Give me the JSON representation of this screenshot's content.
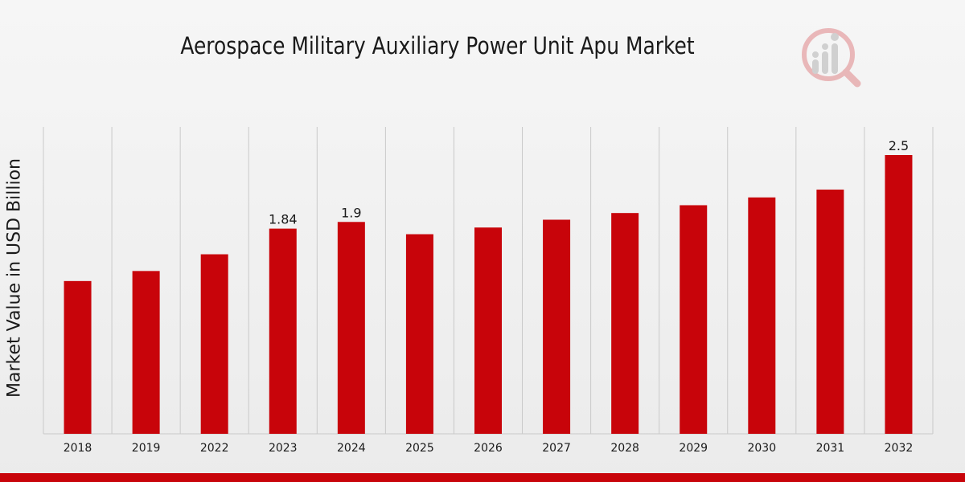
{
  "chart_data": {
    "type": "bar",
    "title": "Aerospace Military Auxiliary Power Unit Apu Market",
    "xlabel": "",
    "ylabel": "Market Value in USD Billion",
    "categories": [
      "2018",
      "2019",
      "2022",
      "2023",
      "2024",
      "2025",
      "2026",
      "2027",
      "2028",
      "2029",
      "2030",
      "2031",
      "2032"
    ],
    "values": [
      1.37,
      1.46,
      1.61,
      1.84,
      1.9,
      1.79,
      1.85,
      1.92,
      1.98,
      2.05,
      2.12,
      2.19,
      2.5
    ],
    "data_labels": {
      "3": "1.84",
      "4": "1.9",
      "12": "2.5"
    },
    "ylim": [
      0,
      2.5
    ],
    "grid": "vertical",
    "bar_color": "#c8040a"
  },
  "colors": {
    "accent": "#c8040a",
    "grid": "#c9c9c9",
    "text": "#1a1a1a"
  },
  "logo": {
    "icon": "analytics-magnifier-icon"
  }
}
